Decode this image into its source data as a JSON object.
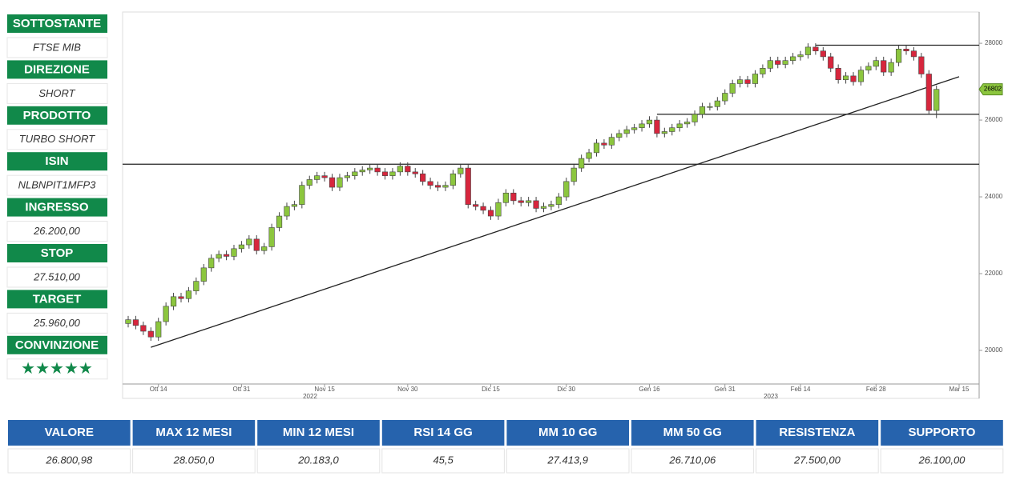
{
  "sidebar": [
    {
      "label": "SOTTOSTANTE",
      "value": "FTSE MIB"
    },
    {
      "label": "DIREZIONE",
      "value": "SHORT"
    },
    {
      "label": "PRODOTTO",
      "value": "TURBO SHORT"
    },
    {
      "label": "ISIN",
      "value": "NLBNPIT1MFP3"
    },
    {
      "label": "INGRESSO",
      "value": "26.200,00"
    },
    {
      "label": "STOP",
      "value": "27.510,00"
    },
    {
      "label": "TARGET",
      "value": "25.960,00"
    },
    {
      "label": "CONVINZIONE",
      "value": "★★★★★"
    }
  ],
  "table": {
    "headers": [
      "VALORE",
      "MAX 12 MESI",
      "MIN 12 MESI",
      "RSI 14 GG",
      "MM 10 GG",
      "MM 50 GG",
      "RESISTENZA",
      "SUPPORTO"
    ],
    "rows": [
      [
        "26.800,98",
        "28.050,0",
        "20.183,0",
        "45,5",
        "27.413,9",
        "26.710,06",
        "27.500,00",
        "26.100,00"
      ]
    ]
  },
  "chart_data": {
    "type": "candlestick",
    "up_color": "#8cc63e",
    "down_color": "#d7263d",
    "categories": [
      null,
      null,
      null,
      null,
      "Ott 14",
      null,
      null,
      null,
      null,
      null,
      null,
      null,
      null,
      null,
      null,
      "Ott 31",
      null,
      null,
      null,
      null,
      null,
      null,
      null,
      null,
      null,
      null,
      "Nov 15",
      null,
      null,
      null,
      null,
      null,
      null,
      null,
      null,
      null,
      null,
      "Nov 30",
      null,
      null,
      null,
      null,
      null,
      null,
      null,
      null,
      null,
      null,
      "Dic 15",
      null,
      null,
      null,
      null,
      null,
      null,
      null,
      null,
      null,
      "Dic 30",
      null,
      null,
      null,
      null,
      null,
      null,
      null,
      null,
      null,
      null,
      "Gen 16",
      null,
      null,
      null,
      null,
      null,
      null,
      null,
      null,
      null,
      "Gen 31",
      null,
      null,
      null,
      null,
      null,
      null,
      null,
      null,
      null,
      "Feb 14",
      null,
      null,
      null,
      null,
      null,
      null,
      null,
      null,
      null,
      "Feb 28",
      null,
      null,
      null,
      null,
      null,
      null,
      null,
      null,
      null,
      null,
      "Mar 15"
    ],
    "year_labels": [
      "2022",
      "2023"
    ],
    "open": [
      20700,
      20800,
      20650,
      20500,
      20350,
      20750,
      21150,
      21400,
      21350,
      21550,
      21800,
      22150,
      22400,
      22500,
      22450,
      22650,
      22750,
      22900,
      22600,
      22700,
      23200,
      23500,
      23750,
      23800,
      24300,
      24450,
      24550,
      24500,
      24250,
      24500,
      24550,
      24650,
      24700,
      24750,
      24650,
      24550,
      24650,
      24800,
      24650,
      24600,
      24400,
      24300,
      24250,
      24300,
      24600,
      24750,
      23800,
      23750,
      23650,
      23500,
      23850,
      24100,
      23900,
      23850,
      23900,
      23700,
      23750,
      23800,
      24000,
      24400,
      24750,
      25000,
      25150,
      25400,
      25350,
      25550,
      25650,
      25750,
      25800,
      25900,
      26000,
      25650,
      25700,
      25800,
      25900,
      25950,
      26150,
      26350,
      26350,
      26500,
      26700,
      26950,
      27050,
      26950,
      27200,
      27350,
      27550,
      27450,
      27550,
      27650,
      27700,
      27900,
      27800,
      27650,
      27350,
      27050,
      27150,
      27000,
      27300,
      27400,
      27550,
      27250,
      27500,
      27850,
      27800,
      27650,
      27200,
      26250,
      null,
      null,
      null
    ],
    "high": [
      20900,
      20900,
      20750,
      20600,
      20850,
      21250,
      21500,
      21500,
      21650,
      21900,
      22250,
      22500,
      22600,
      22600,
      22750,
      22850,
      23000,
      23000,
      22800,
      23300,
      23600,
      23850,
      23900,
      24400,
      24550,
      24650,
      24650,
      24600,
      24600,
      24650,
      24750,
      24800,
      24850,
      24850,
      24750,
      24750,
      24900,
      24900,
      24750,
      24700,
      24500,
      24400,
      24400,
      24700,
      24850,
      24850,
      23900,
      23850,
      23750,
      23950,
      24200,
      24200,
      24000,
      24000,
      24000,
      23850,
      23900,
      24100,
      24500,
      24850,
      25100,
      25250,
      25500,
      25500,
      25650,
      25750,
      25850,
      25900,
      26000,
      26100,
      26100,
      25800,
      25900,
      26000,
      26050,
      26250,
      26450,
      26450,
      26600,
      26800,
      27050,
      27150,
      27150,
      27300,
      27450,
      27650,
      27650,
      27650,
      27750,
      27800,
      28000,
      28000,
      27900,
      27750,
      27450,
      27250,
      27250,
      27400,
      27500,
      27650,
      27650,
      27600,
      27950,
      27950,
      27900,
      27750,
      27300,
      26900,
      null,
      null,
      null
    ],
    "low": [
      20600,
      20550,
      20400,
      20250,
      20250,
      20650,
      21050,
      21250,
      21250,
      21450,
      21700,
      22050,
      22300,
      22350,
      22350,
      22550,
      22650,
      22500,
      22500,
      22600,
      23100,
      23400,
      23650,
      23700,
      24200,
      24350,
      24400,
      24150,
      24150,
      24400,
      24450,
      24550,
      24600,
      24550,
      24450,
      24450,
      24550,
      24550,
      24500,
      24300,
      24200,
      24150,
      24150,
      24200,
      24500,
      23700,
      23650,
      23550,
      23400,
      23400,
      23750,
      23800,
      23750,
      23750,
      23600,
      23600,
      23650,
      23700,
      23900,
      24300,
      24650,
      24900,
      25050,
      25250,
      25250,
      25450,
      25550,
      25650,
      25700,
      25800,
      25550,
      25550,
      25600,
      25700,
      25800,
      25850,
      26050,
      26250,
      26250,
      26400,
      26600,
      26850,
      26850,
      26850,
      27100,
      27250,
      27350,
      27350,
      27450,
      27550,
      27600,
      27700,
      27550,
      27250,
      26950,
      26950,
      26900,
      26900,
      27200,
      27300,
      27150,
      27150,
      27400,
      27700,
      27550,
      27100,
      26150,
      26050,
      null,
      null,
      null
    ],
    "close": [
      20800,
      20650,
      20500,
      20350,
      20750,
      21150,
      21400,
      21350,
      21550,
      21800,
      22150,
      22400,
      22500,
      22450,
      22650,
      22750,
      22900,
      22600,
      22700,
      23200,
      23500,
      23750,
      23800,
      24300,
      24450,
      24550,
      24500,
      24250,
      24500,
      24550,
      24650,
      24700,
      24750,
      24650,
      24550,
      24650,
      24800,
      24650,
      24600,
      24400,
      24300,
      24250,
      24300,
      24600,
      24750,
      23800,
      23750,
      23650,
      23500,
      23850,
      24100,
      23900,
      23850,
      23900,
      23700,
      23750,
      23800,
      24000,
      24400,
      24750,
      25000,
      25150,
      25400,
      25350,
      25550,
      25650,
      25750,
      25800,
      25900,
      26000,
      25650,
      25700,
      25800,
      25900,
      25950,
      26150,
      26350,
      26350,
      26500,
      26700,
      26950,
      27050,
      26950,
      27200,
      27350,
      27550,
      27450,
      27550,
      27650,
      27700,
      27900,
      27800,
      27650,
      27350,
      27050,
      27150,
      27000,
      27300,
      27400,
      27550,
      27250,
      27500,
      27850,
      27800,
      27650,
      27200,
      26250,
      26800,
      null,
      null,
      null
    ],
    "ylim": [
      19125,
      28815
    ],
    "yticks": [
      20000,
      22000,
      24000,
      26000,
      28000
    ],
    "levels": [
      {
        "value": 24850,
        "from": 0
      },
      {
        "value": 26150,
        "from": 70
      },
      {
        "value": 27950,
        "from": 91
      }
    ],
    "trendline": {
      "start": [
        3,
        20080
      ],
      "end": [
        110,
        27130
      ]
    },
    "last_price": 26802,
    "last_price_color": "#8cc63e"
  }
}
